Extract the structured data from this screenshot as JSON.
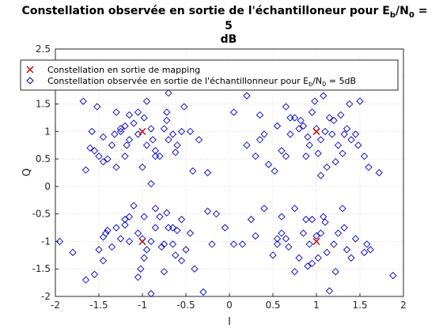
{
  "chart_data": {
    "type": "scatter",
    "title_main": "Constellation observée en sortie de l'échantilloneur pour E",
    "title_sub1": "b",
    "title_mid": "/N",
    "title_sub2": "0",
    "title_end": " =",
    "title_line2": "5",
    "title_line3": "dB",
    "xlabel": "I",
    "ylabel": "Q",
    "xlim": [
      -2,
      2
    ],
    "ylim": [
      -2,
      2.5
    ],
    "xticks": [
      "-2",
      "-1.5",
      "-1",
      "-0.5",
      "0",
      "0.5",
      "1",
      "1.5",
      "2"
    ],
    "yticks": [
      "-2",
      "-1.5",
      "-1",
      "-0.5",
      "0",
      "0.5",
      "1",
      "1.5",
      "2",
      "2.5"
    ],
    "grid": true,
    "legend_position": "top",
    "series": [
      {
        "name": "Constellation en sortie de mapping",
        "marker": "x",
        "color": "#cc0000",
        "points": [
          [
            -1,
            1
          ],
          [
            1,
            1
          ],
          [
            -1,
            -1
          ],
          [
            1,
            -1
          ]
        ]
      },
      {
        "name_main": "Constellation observée en sortie de l'échantillonneur pour E",
        "name_sub1": "b",
        "name_mid": "/N",
        "name_sub2": "0",
        "name_end": " = 5dB",
        "marker": "diamond",
        "color": "#0000cc",
        "points": [
          [
            -1.68,
            1.55
          ],
          [
            -1.52,
            1.45
          ],
          [
            -1.3,
            1.35
          ],
          [
            -1.15,
            1.3
          ],
          [
            -0.98,
            1.25
          ],
          [
            -0.72,
            1.2
          ],
          [
            -0.7,
            1.7
          ],
          [
            -0.52,
            1.45
          ],
          [
            -1.58,
            1.0
          ],
          [
            -1.55,
            0.65
          ],
          [
            -1.5,
            0.55
          ],
          [
            -1.45,
            0.45
          ],
          [
            -1.4,
            0.5
          ],
          [
            -1.35,
            0.75
          ],
          [
            -1.3,
            0.35
          ],
          [
            -1.25,
            1.05
          ],
          [
            -1.2,
            1.1
          ],
          [
            -1.15,
            0.85
          ],
          [
            -1.1,
            1.15
          ],
          [
            -1.05,
            0.95
          ],
          [
            -1.0,
            0.35
          ],
          [
            -0.95,
            0.75
          ],
          [
            -0.9,
            1.05
          ],
          [
            -0.85,
            0.65
          ],
          [
            -0.8,
            0.55
          ],
          [
            -0.75,
            1.05
          ],
          [
            -0.7,
            0.85
          ],
          [
            -0.65,
            0.95
          ],
          [
            -0.6,
            0.75
          ],
          [
            -0.55,
            1.0
          ],
          [
            -0.45,
            1.0
          ],
          [
            -0.35,
            0.85
          ],
          [
            -0.25,
            0.25
          ],
          [
            -0.85,
            0.55
          ],
          [
            -1.25,
            1.0
          ],
          [
            -1.6,
            0.7
          ],
          [
            -1.65,
            0.3
          ],
          [
            -1.2,
            0.55
          ],
          [
            -0.9,
            0.05
          ],
          [
            -1.45,
            0.9
          ],
          [
            -0.95,
            1.55
          ],
          [
            -1.05,
            1.35
          ],
          [
            -0.88,
            0.85
          ],
          [
            -0.72,
            1.35
          ],
          [
            -1.32,
            0.95
          ],
          [
            -1.18,
            0.75
          ],
          [
            -0.62,
            0.62
          ],
          [
            -0.42,
            0.28
          ],
          [
            0.2,
            1.65
          ],
          [
            0.35,
            1.3
          ],
          [
            0.55,
            1.1
          ],
          [
            0.65,
            1.45
          ],
          [
            0.7,
            0.95
          ],
          [
            0.75,
            1.25
          ],
          [
            0.82,
            1.2
          ],
          [
            0.85,
            1.1
          ],
          [
            0.9,
            0.9
          ],
          [
            0.92,
            0.75
          ],
          [
            0.95,
            1.35
          ],
          [
            0.98,
            1.55
          ],
          [
            1.0,
            1.05
          ],
          [
            1.05,
            0.85
          ],
          [
            1.08,
            1.65
          ],
          [
            1.1,
            1.0
          ],
          [
            1.15,
            1.25
          ],
          [
            1.18,
            0.95
          ],
          [
            1.2,
            1.2
          ],
          [
            1.25,
            0.75
          ],
          [
            1.28,
            1.3
          ],
          [
            1.32,
            0.95
          ],
          [
            1.35,
            1.05
          ],
          [
            1.38,
            1.5
          ],
          [
            1.4,
            0.85
          ],
          [
            1.45,
            0.95
          ],
          [
            1.5,
            1.55
          ],
          [
            1.55,
            0.55
          ],
          [
            1.6,
            0.35
          ],
          [
            1.72,
            0.25
          ],
          [
            0.05,
            1.35
          ],
          [
            0.2,
            0.75
          ],
          [
            0.4,
            0.95
          ],
          [
            0.45,
            0.4
          ],
          [
            0.3,
            0.55
          ],
          [
            0.6,
            0.65
          ],
          [
            0.7,
            1.25
          ],
          [
            0.8,
            1.05
          ],
          [
            0.88,
            0.55
          ],
          [
            1.02,
            0.6
          ],
          [
            1.12,
            0.35
          ],
          [
            1.22,
            0.45
          ],
          [
            0.65,
            0.55
          ],
          [
            0.35,
            0.85
          ],
          [
            1.3,
            0.6
          ],
          [
            1.48,
            0.75
          ],
          [
            1.05,
            0.2
          ],
          [
            0.52,
            0.28
          ],
          [
            -1.95,
            -1.0
          ],
          [
            -1.8,
            -1.2
          ],
          [
            -1.65,
            -1.7
          ],
          [
            -1.55,
            -1.6
          ],
          [
            -1.45,
            -1.35
          ],
          [
            -1.42,
            -0.85
          ],
          [
            -1.4,
            -0.8
          ],
          [
            -1.35,
            -1.1
          ],
          [
            -1.25,
            -0.95
          ],
          [
            -1.2,
            -0.6
          ],
          [
            -1.15,
            -0.55
          ],
          [
            -1.1,
            -0.35
          ],
          [
            -1.05,
            -0.85
          ],
          [
            -1.02,
            -1.5
          ],
          [
            -0.98,
            -1.3
          ],
          [
            -0.95,
            -1.15
          ],
          [
            -0.9,
            -1.0
          ],
          [
            -0.85,
            -0.75
          ],
          [
            -0.8,
            -0.55
          ],
          [
            -0.75,
            -1.05
          ],
          [
            -0.7,
            -0.75
          ],
          [
            -0.65,
            -1.05
          ],
          [
            -0.62,
            -1.25
          ],
          [
            -0.6,
            -0.8
          ],
          [
            -0.55,
            -0.6
          ],
          [
            -0.5,
            -1.15
          ],
          [
            -0.4,
            -1.5
          ],
          [
            -0.25,
            -0.45
          ],
          [
            -0.2,
            -1.05
          ],
          [
            -0.15,
            -0.5
          ],
          [
            -0.05,
            -0.75
          ],
          [
            -0.75,
            -1.55
          ],
          [
            -0.9,
            -1.95
          ],
          [
            -1.05,
            -1.65
          ],
          [
            -0.98,
            -0.55
          ],
          [
            -1.3,
            -0.75
          ],
          [
            -1.45,
            -0.92
          ],
          [
            -1.15,
            -1.0
          ],
          [
            -0.72,
            -0.48
          ],
          [
            -0.55,
            -1.35
          ],
          [
            -0.85,
            -0.4
          ],
          [
            -0.65,
            -0.75
          ],
          [
            -0.45,
            -0.85
          ],
          [
            -0.3,
            -1.92
          ],
          [
            -0.78,
            -1.1
          ],
          [
            -1.2,
            -0.7
          ],
          [
            -1.5,
            -1.15
          ],
          [
            -1.0,
            -0.95
          ],
          [
            0.05,
            -1.05
          ],
          [
            0.15,
            -1.05
          ],
          [
            0.25,
            -0.6
          ],
          [
            0.3,
            -0.9
          ],
          [
            0.4,
            -0.4
          ],
          [
            0.5,
            -1.25
          ],
          [
            0.55,
            -1.05
          ],
          [
            0.6,
            -0.85
          ],
          [
            0.65,
            -0.95
          ],
          [
            0.68,
            -1.1
          ],
          [
            0.75,
            -0.4
          ],
          [
            0.8,
            -1.3
          ],
          [
            0.85,
            -0.85
          ],
          [
            0.88,
            -0.6
          ],
          [
            0.92,
            -1.05
          ],
          [
            0.95,
            -1.4
          ],
          [
            1.0,
            -0.9
          ],
          [
            1.02,
            -1.3
          ],
          [
            1.05,
            -0.85
          ],
          [
            1.08,
            -0.55
          ],
          [
            1.12,
            -1.2
          ],
          [
            1.15,
            -1.9
          ],
          [
            1.2,
            -1.05
          ],
          [
            1.25,
            -0.85
          ],
          [
            1.3,
            -0.4
          ],
          [
            1.35,
            -1.15
          ],
          [
            1.4,
            -1.3
          ],
          [
            1.45,
            -0.95
          ],
          [
            1.55,
            -1.2
          ],
          [
            1.58,
            -1.05
          ],
          [
            1.62,
            -1.15
          ],
          [
            1.88,
            -1.62
          ],
          [
            0.6,
            -0.55
          ],
          [
            0.75,
            -1.55
          ],
          [
            0.9,
            -1.45
          ],
          [
            1.1,
            -0.65
          ],
          [
            1.22,
            -1.55
          ],
          [
            1.32,
            -0.75
          ],
          [
            0.95,
            -0.6
          ],
          [
            0.55,
            -0.95
          ]
        ]
      }
    ]
  }
}
